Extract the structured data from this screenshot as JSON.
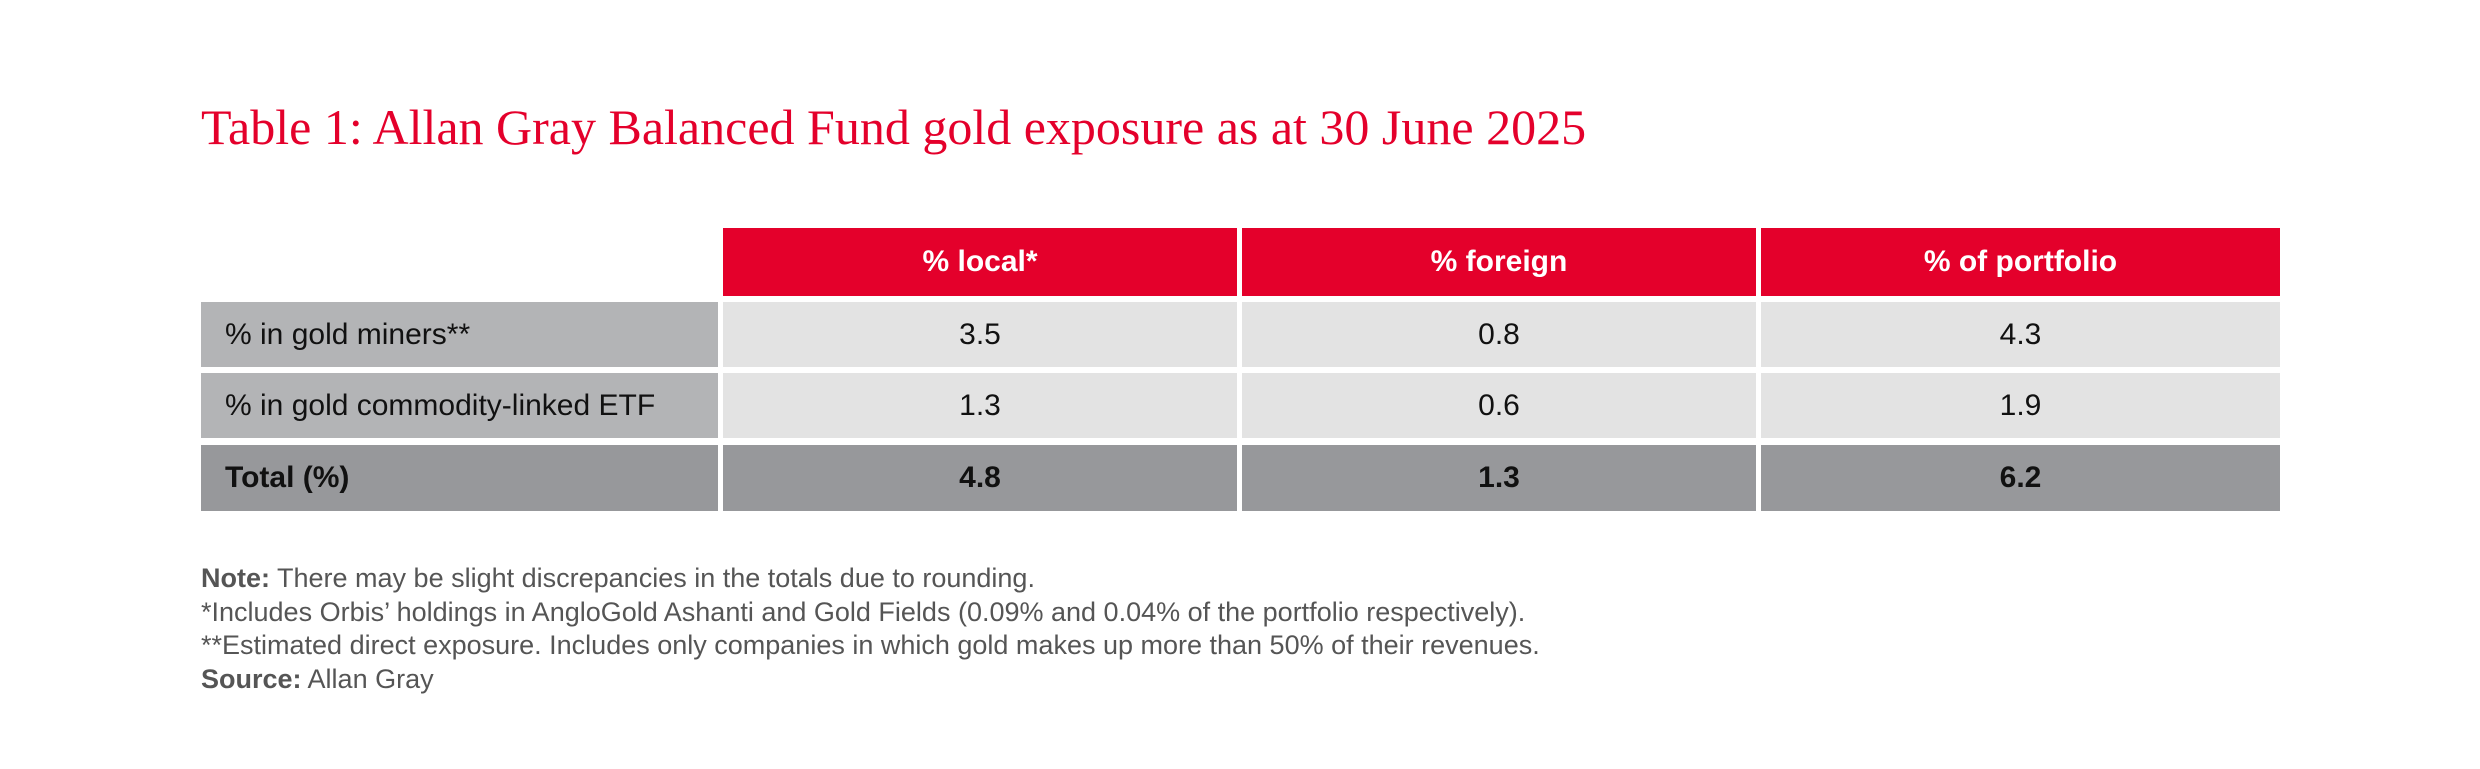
{
  "title": "Table 1: Allan Gray Balanced Fund gold exposure as at 30 June 2025",
  "table": {
    "header": [
      "% local*",
      "% foreign",
      "% of portfolio"
    ],
    "rows": [
      [
        "% in gold miners**",
        3.5,
        0.8,
        4.3
      ],
      [
        "% in gold commodity-linked ETF",
        1.3,
        0.6,
        1.9
      ],
      [
        "Total (%)",
        4.8,
        1.3,
        6.2
      ]
    ]
  },
  "notes": {
    "note_label": "Note:",
    "note_text": "There may be slight discrepancies in the totals due to rounding.",
    "lines": [
      "*Includes Orbis’ holdings in AngloGold Ashanti and Gold Fields (0.09% and 0.04% of the portfolio respectively).",
      "**Estimated direct exposure. Includes only companies in which gold makes up more than 50% of their revenues."
    ],
    "source_label": "Source:",
    "source_text": "Allan Gray"
  }
}
